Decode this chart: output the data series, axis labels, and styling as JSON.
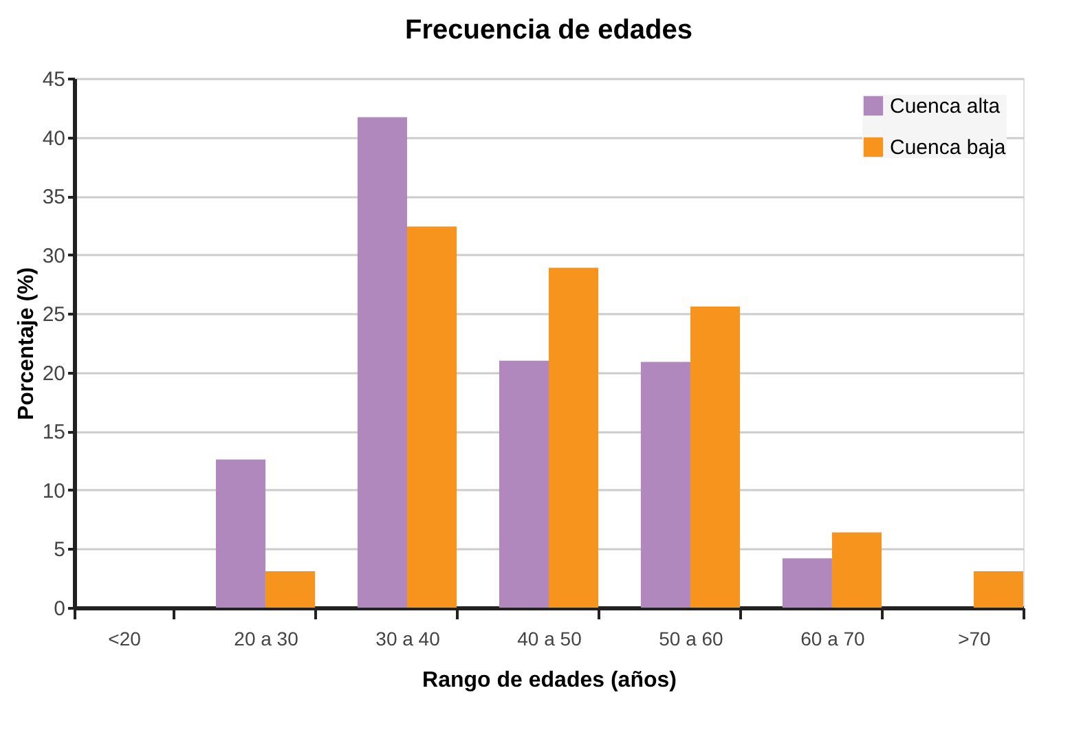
{
  "chart_data": {
    "type": "bar",
    "title": "Frecuencia de edades",
    "xlabel": "Rango de edades (años)",
    "ylabel": "Porcentaje (%)",
    "categories": [
      "<20",
      "20 a 30",
      "30 a 40",
      "40 a 50",
      "50 a 60",
      "60 a 70",
      ">70"
    ],
    "series": [
      {
        "name": "Cuenca alta",
        "color": "#b088bd",
        "values": [
          0,
          12.6,
          41.7,
          21.0,
          20.9,
          4.2,
          0
        ]
      },
      {
        "name": "Cuenca baja",
        "color": "#f7941d",
        "values": [
          0,
          3.1,
          32.4,
          28.9,
          25.6,
          6.4,
          3.1
        ]
      }
    ],
    "ylim": [
      0,
      45
    ],
    "yticks": [
      0,
      5,
      10,
      15,
      20,
      25,
      30,
      35,
      40,
      45
    ],
    "grid": "y",
    "legend": "top right"
  }
}
